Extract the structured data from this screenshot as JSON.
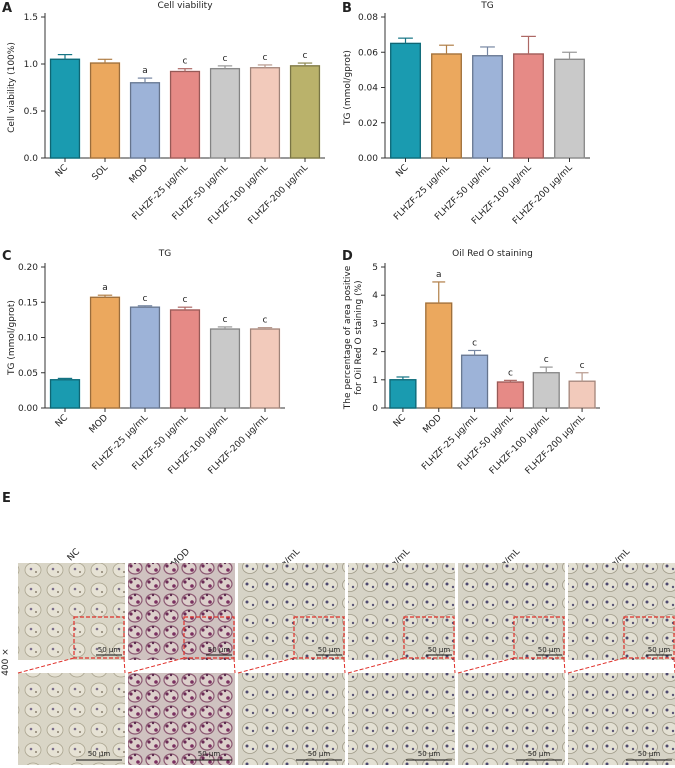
{
  "chart_data": [
    {
      "type": "bar",
      "panel": "A",
      "title": "Cell viability",
      "y_label": [
        "Cell viability (100%)"
      ],
      "categories": [
        "NC",
        "SOL",
        "MOD",
        "FLHZF-25 μg/mL",
        "FLHZF-50 μg/mL",
        "FLHZF-100 μg/mL",
        "FLHZF-200 μg/mL"
      ],
      "values": [
        1.05,
        1.01,
        0.8,
        0.92,
        0.95,
        0.96,
        0.98
      ],
      "errors": [
        0.05,
        0.04,
        0.05,
        0.03,
        0.03,
        0.03,
        0.03
      ],
      "annotations": [
        null,
        null,
        "a",
        "c",
        "c",
        "c",
        "c"
      ],
      "colors": [
        "#1a9bb0",
        "#eba85e",
        "#9db3d8",
        "#e68a86",
        "#c9c9c9",
        "#f2cabb",
        "#bab26b"
      ],
      "ylim": [
        0,
        1.5
      ],
      "yticks": [
        {
          "value": 0,
          "label": "0.0"
        },
        {
          "value": 0.5,
          "label": "0.5"
        },
        {
          "value": 1,
          "label": "1.0"
        },
        {
          "value": 1.5,
          "label": "1.5"
        }
      ]
    },
    {
      "type": "bar",
      "panel": "B",
      "title": "TG",
      "y_label": [
        "TG (mmol/gprot)"
      ],
      "categories": [
        "NC",
        "FLHZF-25 μg/mL",
        "FLHZF-50 μg/mL",
        "FLHZF-100 μg/mL",
        "FLHZF-200 μg/mL"
      ],
      "values": [
        0.065,
        0.059,
        0.058,
        0.059,
        0.056
      ],
      "errors": [
        0.003,
        0.005,
        0.005,
        0.01,
        0.004
      ],
      "annotations": [
        null,
        null,
        null,
        null,
        null
      ],
      "colors": [
        "#1a9bb0",
        "#eba85e",
        "#9db3d8",
        "#e68a86",
        "#c9c9c9"
      ],
      "ylim": [
        0,
        0.08
      ],
      "yticks": [
        {
          "value": 0,
          "label": "0.00"
        },
        {
          "value": 0.02,
          "label": "0.02"
        },
        {
          "value": 0.04,
          "label": "0.04"
        },
        {
          "value": 0.06,
          "label": "0.06"
        },
        {
          "value": 0.08,
          "label": "0.08"
        }
      ]
    },
    {
      "type": "bar",
      "panel": "C",
      "title": "TG",
      "y_label": [
        "TG (mmol/gprot)"
      ],
      "categories": [
        "NC",
        "MOD",
        "FLHZF-25 μg/mL",
        "FLHZF-50 μg/mL",
        "FLHZF-100 μg/mL",
        "FLHZF-200 μg/mL"
      ],
      "values": [
        0.04,
        0.157,
        0.143,
        0.139,
        0.112,
        0.112
      ],
      "errors": [
        0.002,
        0.003,
        0.002,
        0.004,
        0.003,
        0.002
      ],
      "annotations": [
        null,
        "a",
        "c",
        "c",
        "c",
        "c"
      ],
      "colors": [
        "#1a9bb0",
        "#eba85e",
        "#9db3d8",
        "#e68a86",
        "#c9c9c9",
        "#f2cabb"
      ],
      "ylim": [
        0,
        0.2
      ],
      "yticks": [
        {
          "value": 0,
          "label": "0.00"
        },
        {
          "value": 0.05,
          "label": "0.05"
        },
        {
          "value": 0.1,
          "label": "0.10"
        },
        {
          "value": 0.15,
          "label": "0.15"
        },
        {
          "value": 0.2,
          "label": "0.20"
        }
      ]
    },
    {
      "type": "bar",
      "panel": "D",
      "title": "Oil Red O staining",
      "y_label": [
        "The percentage of area positive",
        "for Oil Red O staining (%)"
      ],
      "categories": [
        "NC",
        "MOD",
        "FLHZF-25 μg/mL",
        "FLHZF-50 μg/mL",
        "FLHZF-100 μg/mL",
        "FLHZF-200 μg/mL"
      ],
      "values": [
        1.0,
        3.72,
        1.87,
        0.92,
        1.25,
        0.95
      ],
      "errors": [
        0.1,
        0.75,
        0.17,
        0.06,
        0.2,
        0.3
      ],
      "annotations": [
        null,
        "a",
        "c",
        "c",
        "c",
        "c"
      ],
      "colors": [
        "#1a9bb0",
        "#eba85e",
        "#9db3d8",
        "#e68a86",
        "#c9c9c9",
        "#f2cabb"
      ],
      "ylim": [
        0,
        5
      ],
      "yticks": [
        0,
        1,
        2,
        3,
        4,
        5
      ]
    }
  ],
  "panel_e": {
    "panel": "E",
    "columns": [
      "NC",
      "MOD",
      "FLHZF-25 μg/mL",
      "FLHZF-50 μg/mL",
      "FLHZF-100 μg/mL",
      "FLHZF-200 μg/mL"
    ],
    "magnification": "400 ×",
    "scale_bar": "50 μm"
  }
}
